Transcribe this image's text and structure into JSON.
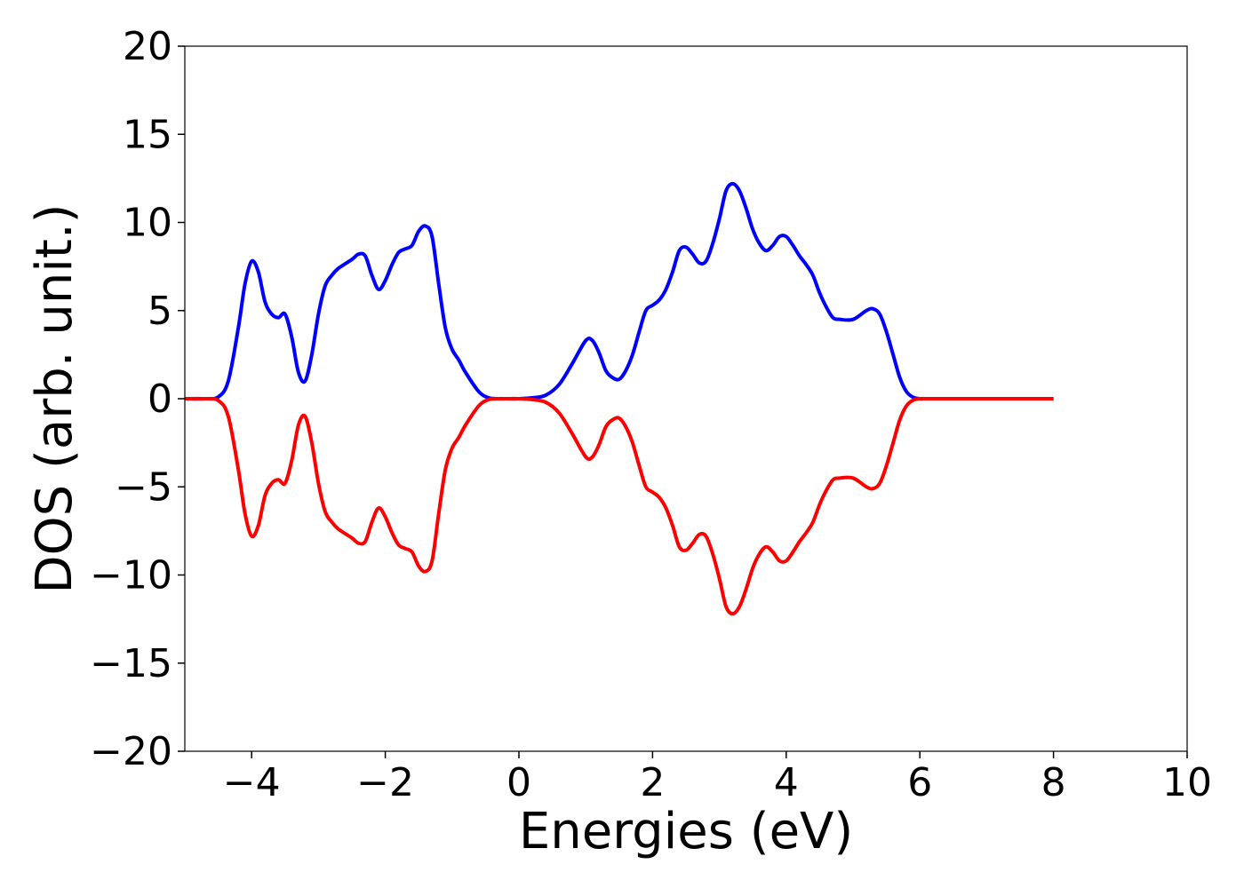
{
  "chart_data": {
    "type": "line",
    "title": "",
    "xlabel": "Energies (eV)",
    "ylabel": "DOS (arb. unit.)",
    "xlim": [
      -5,
      10
    ],
    "ylim": [
      -20,
      20
    ],
    "x_ticks": [
      -4,
      -2,
      0,
      2,
      4,
      6,
      8,
      10
    ],
    "x_tick_labels": [
      "−4",
      "−2",
      "0",
      "2",
      "4",
      "6",
      "8",
      "10"
    ],
    "y_ticks": [
      20,
      15,
      10,
      5,
      0,
      -5,
      -10,
      -15,
      -20
    ],
    "y_tick_labels": [
      "20",
      "15",
      "10",
      "5",
      "0",
      "−5",
      "−10",
      "−15",
      "−20"
    ],
    "grid": false,
    "legend": "none",
    "series": [
      {
        "color": "#0000ff",
        "x": [
          -5.0,
          -4.7,
          -4.5,
          -4.35,
          -4.2,
          -4.1,
          -4.0,
          -3.9,
          -3.8,
          -3.7,
          -3.6,
          -3.5,
          -3.4,
          -3.3,
          -3.2,
          -3.1,
          -3.0,
          -2.9,
          -2.8,
          -2.7,
          -2.5,
          -2.4,
          -2.3,
          -2.2,
          -2.1,
          -2.0,
          -1.9,
          -1.8,
          -1.7,
          -1.6,
          -1.5,
          -1.4,
          -1.3,
          -1.2,
          -1.1,
          -1.0,
          -0.9,
          -0.8,
          -0.6,
          -0.45,
          -0.3,
          -0.2,
          0.0,
          0.2,
          0.4,
          0.6,
          0.8,
          1.0,
          1.1,
          1.2,
          1.3,
          1.4,
          1.5,
          1.6,
          1.7,
          1.8,
          1.9,
          2.0,
          2.1,
          2.2,
          2.3,
          2.4,
          2.5,
          2.6,
          2.7,
          2.8,
          2.9,
          3.0,
          3.1,
          3.2,
          3.3,
          3.4,
          3.5,
          3.6,
          3.7,
          3.8,
          3.9,
          4.0,
          4.1,
          4.2,
          4.3,
          4.4,
          4.5,
          4.6,
          4.7,
          4.8,
          5.0,
          5.2,
          5.3,
          5.4,
          5.5,
          5.6,
          5.7,
          5.8,
          5.9,
          6.0,
          6.1,
          6.2,
          6.4,
          7.0,
          8.0
        ],
        "y": [
          0.0,
          0.0,
          0.1,
          1.0,
          4.0,
          6.5,
          7.8,
          7.2,
          5.5,
          4.8,
          4.6,
          4.8,
          3.5,
          1.5,
          1.0,
          2.5,
          4.8,
          6.4,
          7.0,
          7.4,
          7.9,
          8.2,
          8.1,
          7.0,
          6.2,
          6.7,
          7.6,
          8.3,
          8.5,
          8.7,
          9.5,
          9.8,
          9.2,
          6.5,
          4.0,
          2.8,
          2.2,
          1.5,
          0.4,
          0.05,
          0.0,
          0.0,
          0.0,
          0.05,
          0.2,
          0.8,
          2.0,
          3.3,
          3.3,
          2.6,
          1.6,
          1.2,
          1.1,
          1.6,
          2.5,
          3.8,
          5.0,
          5.3,
          5.6,
          6.2,
          7.2,
          8.4,
          8.6,
          8.2,
          7.7,
          7.8,
          8.8,
          10.2,
          11.8,
          12.2,
          11.8,
          10.8,
          9.6,
          8.8,
          8.4,
          8.7,
          9.2,
          9.2,
          8.7,
          8.1,
          7.6,
          7.0,
          6.0,
          5.2,
          4.6,
          4.5,
          4.5,
          5.0,
          5.1,
          4.8,
          3.8,
          2.5,
          1.2,
          0.4,
          0.08,
          0.0,
          0.0,
          0.0,
          0.0,
          0.0,
          0.0
        ]
      },
      {
        "color": "#ff0000",
        "x": [
          -5.0,
          -4.7,
          -4.5,
          -4.35,
          -4.2,
          -4.1,
          -4.0,
          -3.9,
          -3.8,
          -3.7,
          -3.6,
          -3.5,
          -3.4,
          -3.3,
          -3.2,
          -3.1,
          -3.0,
          -2.9,
          -2.8,
          -2.7,
          -2.5,
          -2.4,
          -2.3,
          -2.2,
          -2.1,
          -2.0,
          -1.9,
          -1.8,
          -1.7,
          -1.6,
          -1.5,
          -1.4,
          -1.3,
          -1.2,
          -1.1,
          -1.0,
          -0.9,
          -0.8,
          -0.6,
          -0.45,
          -0.3,
          -0.2,
          0.0,
          0.2,
          0.4,
          0.6,
          0.8,
          1.0,
          1.1,
          1.2,
          1.3,
          1.4,
          1.5,
          1.6,
          1.7,
          1.8,
          1.9,
          2.0,
          2.1,
          2.2,
          2.3,
          2.4,
          2.5,
          2.6,
          2.7,
          2.8,
          2.9,
          3.0,
          3.1,
          3.2,
          3.3,
          3.4,
          3.5,
          3.6,
          3.7,
          3.8,
          3.9,
          4.0,
          4.1,
          4.2,
          4.3,
          4.4,
          4.5,
          4.6,
          4.7,
          4.8,
          5.0,
          5.2,
          5.3,
          5.4,
          5.5,
          5.6,
          5.7,
          5.8,
          5.9,
          6.0,
          6.1,
          6.2,
          6.4,
          7.0,
          8.0
        ],
        "y": [
          0.0,
          0.0,
          -0.1,
          -1.0,
          -4.0,
          -6.5,
          -7.8,
          -7.2,
          -5.5,
          -4.8,
          -4.6,
          -4.8,
          -3.5,
          -1.5,
          -1.0,
          -2.5,
          -4.8,
          -6.4,
          -7.0,
          -7.4,
          -7.9,
          -8.2,
          -8.1,
          -7.0,
          -6.2,
          -6.7,
          -7.6,
          -8.3,
          -8.5,
          -8.7,
          -9.5,
          -9.8,
          -9.2,
          -6.5,
          -4.0,
          -2.8,
          -2.2,
          -1.5,
          -0.4,
          -0.05,
          0.0,
          0.0,
          0.0,
          -0.05,
          -0.2,
          -0.8,
          -2.0,
          -3.3,
          -3.3,
          -2.6,
          -1.6,
          -1.2,
          -1.1,
          -1.6,
          -2.5,
          -3.8,
          -5.0,
          -5.3,
          -5.6,
          -6.2,
          -7.2,
          -8.4,
          -8.6,
          -8.2,
          -7.7,
          -7.8,
          -8.8,
          -10.2,
          -11.8,
          -12.2,
          -11.8,
          -10.8,
          -9.6,
          -8.8,
          -8.4,
          -8.7,
          -9.2,
          -9.2,
          -8.7,
          -8.1,
          -7.6,
          -7.0,
          -6.0,
          -5.2,
          -4.6,
          -4.5,
          -4.5,
          -5.0,
          -5.1,
          -4.8,
          -3.8,
          -2.5,
          -1.2,
          -0.4,
          -0.08,
          0.0,
          0.0,
          0.0,
          0.0,
          0.0,
          0.0
        ]
      }
    ]
  }
}
